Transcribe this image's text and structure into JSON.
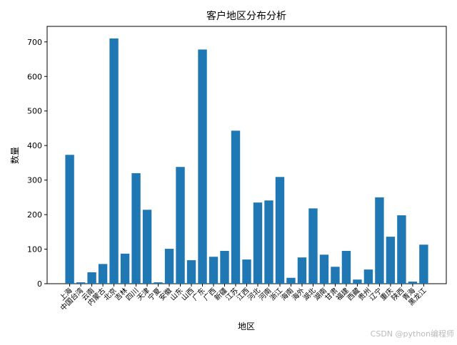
{
  "chart_data": {
    "type": "bar",
    "title": "客户地区分布分析",
    "x_label": "地区",
    "y_label": "数量",
    "categories": [
      "上海",
      "中国台湾",
      "云南",
      "内蒙古",
      "北京",
      "吉林",
      "四川",
      "天津",
      "宁夏",
      "安徽",
      "山东",
      "山西",
      "广东",
      "广西",
      "新疆",
      "江苏",
      "江西",
      "河北",
      "河南",
      "浙江",
      "海南",
      "海外",
      "湖北",
      "湖南",
      "甘肃",
      "福建",
      "西藏",
      "贵州",
      "辽宁",
      "重庆",
      "陕西",
      "青海",
      "黑龙江"
    ],
    "values": [
      373,
      4,
      33,
      57,
      710,
      87,
      320,
      214,
      4,
      101,
      338,
      68,
      678,
      78,
      95,
      443,
      70,
      235,
      241,
      309,
      17,
      76,
      218,
      84,
      49,
      95,
      12,
      41,
      250,
      136,
      198,
      6,
      113
    ],
    "color": "#1f77b4",
    "ylim": [
      0,
      745
    ],
    "yticks": [
      0,
      100,
      200,
      300,
      400,
      500,
      600,
      700
    ],
    "grid": false,
    "watermark": "CSDN @python编程师"
  }
}
